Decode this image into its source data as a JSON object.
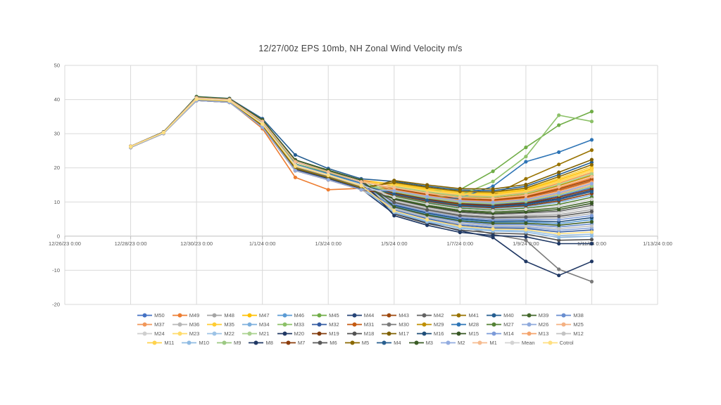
{
  "chart_data": {
    "type": "line",
    "title": "12/27/00z EPS 10mb, NH Zonal Wind Velocity m/s",
    "xlabel": "",
    "ylabel": "",
    "ylim": [
      -20,
      50
    ],
    "y_ticks": [
      -20,
      -10,
      0,
      10,
      20,
      30,
      40,
      50
    ],
    "grid": true,
    "legend_position": "bottom",
    "legend_columns": 13,
    "x_axis": {
      "span_days": 18,
      "tick_days": [
        0,
        2,
        4,
        6,
        8,
        10,
        12,
        14,
        16,
        18
      ],
      "tick_labels": [
        "12/26/23 0:00",
        "12/28/23 0:00",
        "12/30/23 0:00",
        "1/1/24 0:00",
        "1/3/24 0:00",
        "1/5/24 0:00",
        "1/7/24 0:00",
        "1/9/24 0:00",
        "1/11/24 0:00",
        "1/13/24 0:00"
      ]
    },
    "x_dates": [
      "12/28/23 0:00",
      "12/29/23 0:00",
      "12/30/23 0:00",
      "12/31/23 0:00",
      "1/1/24 0:00",
      "1/2/24 0:00",
      "1/3/24 0:00",
      "1/4/24 0:00",
      "1/5/24 0:00",
      "1/6/24 0:00",
      "1/7/24 0:00",
      "1/8/24 0:00",
      "1/9/24 0:00",
      "1/10/24 0:00",
      "1/11/24 0:00"
    ],
    "data_start_day": 2,
    "series": [
      {
        "name": "M50",
        "color": "#4472C4",
        "values": [
          26.3,
          30.4,
          40.5,
          40.0,
          33.6,
          21.8,
          18.8,
          15.9,
          12.8,
          11.0,
          9.7,
          9.3,
          10.0,
          11.7,
          14.2
        ]
      },
      {
        "name": "M49",
        "color": "#ED7D31",
        "values": [
          26.1,
          30.2,
          39.8,
          39.3,
          31.5,
          17.2,
          13.6,
          14.0,
          14.0,
          12.4,
          11.1,
          10.8,
          11.7,
          14.1,
          17.0
        ]
      },
      {
        "name": "M48",
        "color": "#A5A5A5",
        "values": [
          26.2,
          30.3,
          40.2,
          39.7,
          33.0,
          20.8,
          18.0,
          15.0,
          10.2,
          8.0,
          6.3,
          5.7,
          6.0,
          6.3,
          7.8
        ]
      },
      {
        "name": "M47",
        "color": "#FFC000",
        "values": [
          26.3,
          30.5,
          40.7,
          40.2,
          34.0,
          22.3,
          19.3,
          16.4,
          15.2,
          13.7,
          12.6,
          12.3,
          13.5,
          16.5,
          19.8
        ]
      },
      {
        "name": "M46",
        "color": "#5B9BD5",
        "values": [
          26.0,
          30.1,
          39.7,
          39.2,
          31.9,
          19.2,
          16.5,
          13.6,
          8.9,
          6.5,
          4.8,
          4.1,
          4.2,
          3.7,
          4.8
        ]
      },
      {
        "name": "M45",
        "color": "#70AD47",
        "values": [
          26.3,
          30.4,
          40.9,
          40.3,
          33.8,
          21.8,
          19.0,
          16.5,
          13.3,
          13.2,
          13.6,
          19.0,
          26.0,
          32.5,
          36.5
        ]
      },
      {
        "name": "M44",
        "color": "#264478",
        "values": [
          26.3,
          30.4,
          40.5,
          40.0,
          33.6,
          21.8,
          18.8,
          15.9,
          12.5,
          10.7,
          9.2,
          8.8,
          9.5,
          11.0,
          13.4
        ]
      },
      {
        "name": "M43",
        "color": "#9E480E",
        "values": [
          26.1,
          30.2,
          39.9,
          39.4,
          32.4,
          19.9,
          17.2,
          14.2,
          13.9,
          12.2,
          10.9,
          10.6,
          11.5,
          13.8,
          16.6
        ]
      },
      {
        "name": "M42",
        "color": "#636363",
        "values": [
          26.2,
          30.3,
          40.2,
          39.7,
          33.0,
          20.8,
          18.0,
          15.0,
          10.7,
          8.5,
          7.0,
          6.4,
          6.8,
          7.3,
          9.0
        ]
      },
      {
        "name": "M41",
        "color": "#997300",
        "values": [
          26.2,
          30.3,
          40.3,
          39.8,
          33.1,
          20.9,
          17.8,
          14.8,
          11.6,
          10.2,
          9.4,
          12.0,
          16.8,
          21.0,
          25.2
        ]
      },
      {
        "name": "M40",
        "color": "#255E91",
        "values": [
          26.3,
          30.5,
          40.8,
          40.3,
          34.4,
          23.8,
          19.8,
          16.8,
          16.0,
          14.6,
          13.5,
          13.3,
          14.6,
          18.0,
          21.6
        ]
      },
      {
        "name": "M39",
        "color": "#43682B",
        "values": [
          26.1,
          30.2,
          39.9,
          39.4,
          32.4,
          19.9,
          17.2,
          14.2,
          11.2,
          9.1,
          7.6,
          7.1,
          7.5,
          8.3,
          10.2
        ]
      },
      {
        "name": "M38",
        "color": "#698ED0",
        "values": [
          26.2,
          30.3,
          40.2,
          39.7,
          33.0,
          20.8,
          18.0,
          15.0,
          8.4,
          6.0,
          4.2,
          3.4,
          3.4,
          2.7,
          3.6
        ]
      },
      {
        "name": "M37",
        "color": "#F1975A",
        "values": [
          26.3,
          30.5,
          40.7,
          40.2,
          34.0,
          22.3,
          19.3,
          16.4,
          14.7,
          13.1,
          12.0,
          11.7,
          12.7,
          15.5,
          18.6
        ]
      },
      {
        "name": "M36",
        "color": "#B7B7B7",
        "values": [
          26.0,
          30.1,
          39.7,
          39.2,
          31.9,
          19.2,
          16.5,
          13.6,
          9.7,
          7.4,
          5.7,
          5.1,
          5.3,
          5.3,
          6.6
        ]
      },
      {
        "name": "M35",
        "color": "#FFCD33",
        "values": [
          26.3,
          30.4,
          40.5,
          40.0,
          33.6,
          21.8,
          18.8,
          15.9,
          15.4,
          14.0,
          12.8,
          12.6,
          13.8,
          16.9,
          20.3
        ]
      },
      {
        "name": "M34",
        "color": "#7CAFDD",
        "values": [
          26.1,
          30.2,
          39.9,
          39.4,
          32.4,
          19.9,
          17.2,
          14.2,
          11.9,
          10.0,
          8.5,
          8.1,
          8.6,
          9.9,
          12.0
        ]
      },
      {
        "name": "M33",
        "color": "#8CC168",
        "values": [
          26.2,
          30.3,
          40.6,
          40.1,
          33.4,
          21.2,
          18.6,
          15.9,
          12.8,
          11.5,
          12.0,
          16.0,
          23.3,
          35.4,
          33.6
        ]
      },
      {
        "name": "M32",
        "color": "#335AA1",
        "values": [
          26.2,
          30.3,
          40.2,
          39.7,
          33.0,
          20.8,
          18.0,
          15.0,
          7.6,
          5.1,
          3.2,
          2.4,
          2.3,
          1.2,
          1.8
        ]
      },
      {
        "name": "M31",
        "color": "#C55A11",
        "values": [
          26.3,
          30.5,
          40.7,
          40.2,
          34.0,
          22.3,
          19.3,
          16.4,
          13.7,
          12.0,
          10.7,
          10.4,
          11.2,
          13.4,
          16.2
        ]
      },
      {
        "name": "M30",
        "color": "#7B7B7B",
        "values": [
          26.2,
          30.2,
          40.0,
          39.6,
          32.6,
          20.2,
          17.4,
          14.4,
          8.0,
          6.0,
          3.0,
          0.5,
          -1.2,
          -9.7,
          -13.3
        ]
      },
      {
        "name": "M29",
        "color": "#BF8F00",
        "values": [
          26.0,
          30.1,
          39.7,
          39.2,
          31.9,
          19.2,
          16.5,
          13.6,
          14.4,
          12.8,
          11.5,
          11.2,
          12.2,
          14.8,
          17.8
        ]
      },
      {
        "name": "M28",
        "color": "#2E75B6",
        "values": [
          26.2,
          30.3,
          40.1,
          39.6,
          32.8,
          21.0,
          18.3,
          15.5,
          12.2,
          10.8,
          11.2,
          14.6,
          21.8,
          24.6,
          28.2
        ]
      },
      {
        "name": "M27",
        "color": "#548235",
        "values": [
          26.3,
          30.4,
          40.5,
          40.0,
          33.6,
          21.8,
          18.8,
          15.9,
          11.7,
          9.7,
          8.2,
          7.7,
          8.2,
          9.3,
          11.4
        ]
      },
      {
        "name": "M26",
        "color": "#8FAADC",
        "values": [
          26.1,
          30.2,
          39.9,
          39.4,
          32.4,
          19.9,
          17.2,
          14.2,
          7.9,
          5.4,
          3.5,
          2.8,
          2.7,
          1.7,
          2.4
        ]
      },
      {
        "name": "M25",
        "color": "#F4B183",
        "values": [
          26.2,
          30.3,
          40.2,
          39.7,
          33.0,
          20.8,
          18.0,
          15.0,
          13.2,
          11.4,
          10.1,
          9.7,
          10.5,
          12.4,
          15.0
        ]
      },
      {
        "name": "M24",
        "color": "#CFCFCF",
        "values": [
          26.3,
          30.5,
          40.7,
          40.2,
          34.0,
          22.3,
          19.3,
          16.4,
          10.4,
          8.3,
          6.6,
          6.1,
          6.4,
          6.8,
          8.4
        ]
      },
      {
        "name": "M23",
        "color": "#FFDB69",
        "values": [
          26.0,
          30.1,
          39.7,
          39.2,
          31.9,
          19.2,
          16.5,
          13.6,
          14.9,
          13.3,
          12.2,
          11.9,
          13.0,
          15.8,
          19.0
        ]
      },
      {
        "name": "M22",
        "color": "#9DC3E6",
        "values": [
          26.3,
          30.4,
          40.5,
          40.0,
          33.6,
          21.8,
          18.8,
          15.9,
          7.1,
          4.5,
          2.6,
          1.8,
          1.6,
          0.2,
          0.6
        ]
      },
      {
        "name": "M21",
        "color": "#A9D18E",
        "values": [
          26.1,
          30.2,
          39.9,
          39.4,
          32.4,
          19.9,
          17.2,
          14.2,
          14.5,
          13.0,
          11.7,
          11.5,
          12.5,
          15.1,
          18.2
        ]
      },
      {
        "name": "M20",
        "color": "#203864",
        "values": [
          26.1,
          30.2,
          40.0,
          39.5,
          32.3,
          19.6,
          16.9,
          13.8,
          6.5,
          4.0,
          1.6,
          -0.4,
          -7.4,
          -11.5,
          -7.4
        ]
      },
      {
        "name": "M19",
        "color": "#823B0C",
        "values": [
          26.2,
          30.3,
          40.2,
          39.7,
          33.0,
          20.8,
          18.0,
          15.0,
          12.7,
          10.8,
          9.5,
          9.0,
          9.7,
          11.4,
          13.8
        ]
      },
      {
        "name": "M18",
        "color": "#525252",
        "values": [
          26.3,
          30.5,
          40.7,
          40.2,
          34.0,
          22.3,
          19.3,
          16.4,
          6.5,
          3.7,
          1.8,
          0.9,
          0.6,
          -1.2,
          -1.0
        ]
      },
      {
        "name": "M17",
        "color": "#7F6000",
        "values": [
          26.0,
          30.1,
          39.7,
          39.2,
          31.9,
          19.2,
          16.5,
          13.6,
          16.3,
          15.0,
          13.9,
          13.8,
          15.1,
          18.7,
          22.4
        ]
      },
      {
        "name": "M16",
        "color": "#1F4E79",
        "values": [
          26.3,
          30.4,
          40.5,
          40.0,
          33.6,
          21.8,
          18.8,
          15.9,
          9.1,
          6.8,
          5.1,
          4.4,
          4.5,
          4.2,
          5.4
        ]
      },
      {
        "name": "M15",
        "color": "#375623",
        "values": [
          26.1,
          30.2,
          39.9,
          39.4,
          32.4,
          19.9,
          17.2,
          14.2,
          10.9,
          8.8,
          7.3,
          6.7,
          7.1,
          7.8,
          9.6
        ]
      },
      {
        "name": "M14",
        "color": "#7C9BD9",
        "values": [
          26.2,
          30.3,
          40.2,
          39.7,
          33.0,
          20.8,
          18.0,
          15.0,
          9.4,
          7.1,
          5.4,
          4.8,
          4.9,
          4.8,
          6.0
        ]
      },
      {
        "name": "M13",
        "color": "#F4A46C",
        "values": [
          26.3,
          30.5,
          40.7,
          40.2,
          34.0,
          22.3,
          19.3,
          16.4,
          13.5,
          11.8,
          10.5,
          10.1,
          11.0,
          13.1,
          15.8
        ]
      },
      {
        "name": "M12",
        "color": "#C3C3C3",
        "values": [
          26.0,
          30.1,
          39.7,
          39.2,
          31.9,
          19.2,
          16.5,
          13.6,
          8.1,
          5.7,
          3.8,
          3.1,
          3.0,
          2.2,
          3.0
        ]
      },
      {
        "name": "M11",
        "color": "#FFD34D",
        "values": [
          26.3,
          30.4,
          40.5,
          40.0,
          33.6,
          21.8,
          18.8,
          15.9,
          15.0,
          13.5,
          12.4,
          12.1,
          13.2,
          16.1,
          19.4
        ]
      },
      {
        "name": "M10",
        "color": "#8FBBE3",
        "values": [
          26.1,
          30.2,
          39.9,
          39.4,
          32.4,
          19.9,
          17.2,
          14.2,
          6.9,
          4.2,
          2.3,
          1.5,
          1.2,
          -0.4,
          0.0
        ]
      },
      {
        "name": "M9",
        "color": "#9CC983",
        "values": [
          26.2,
          30.3,
          40.2,
          39.7,
          33.0,
          20.8,
          18.0,
          15.0,
          13.0,
          11.2,
          9.9,
          9.5,
          10.2,
          12.1,
          14.6
        ]
      },
      {
        "name": "M8",
        "color": "#1F3864",
        "values": [
          26.3,
          30.5,
          40.7,
          40.2,
          34.0,
          22.3,
          19.3,
          16.4,
          6.0,
          3.2,
          1.1,
          0.2,
          -0.2,
          -2.2,
          -2.2
        ]
      },
      {
        "name": "M7",
        "color": "#8C3D0C",
        "values": [
          26.0,
          30.1,
          39.7,
          39.2,
          31.9,
          19.2,
          16.5,
          13.6,
          12.1,
          10.2,
          8.8,
          8.3,
          8.9,
          10.3,
          12.5
        ]
      },
      {
        "name": "M6",
        "color": "#595959",
        "values": [
          26.3,
          30.4,
          40.5,
          40.0,
          33.6,
          21.8,
          18.8,
          15.9,
          9.9,
          7.7,
          6.0,
          5.4,
          5.6,
          5.8,
          7.2
        ]
      },
      {
        "name": "M5",
        "color": "#8A6800",
        "values": [
          26.1,
          30.2,
          39.9,
          39.4,
          32.4,
          19.9,
          17.2,
          14.2,
          15.7,
          14.3,
          13.1,
          12.9,
          14.1,
          17.4,
          20.9
        ]
      },
      {
        "name": "M4",
        "color": "#295F8F",
        "values": [
          26.2,
          30.3,
          40.2,
          39.7,
          33.0,
          20.8,
          18.0,
          15.0,
          12.3,
          10.5,
          9.0,
          8.6,
          9.2,
          10.7,
          13.0
        ]
      },
      {
        "name": "M3",
        "color": "#3B5D26",
        "values": [
          26.3,
          30.5,
          40.7,
          40.2,
          34.0,
          22.3,
          19.3,
          16.4,
          8.6,
          6.2,
          4.5,
          3.8,
          3.8,
          3.2,
          4.2
        ]
      },
      {
        "name": "M2",
        "color": "#93ACE0",
        "values": [
          26.0,
          30.1,
          39.7,
          39.2,
          31.9,
          19.2,
          16.5,
          13.6,
          13.3,
          11.6,
          10.3,
          9.9,
          10.7,
          12.7,
          15.4
        ]
      },
      {
        "name": "M1",
        "color": "#F6BB8F",
        "values": [
          26.3,
          30.4,
          40.5,
          40.0,
          33.6,
          21.8,
          18.8,
          15.9,
          14.2,
          12.6,
          11.3,
          11.0,
          12.0,
          14.4,
          17.4
        ]
      },
      {
        "name": "Mean",
        "color": "#D3D3D3",
        "values": [
          26.2,
          30.3,
          40.2,
          39.7,
          33.0,
          20.8,
          18.0,
          15.0,
          11.4,
          9.4,
          7.9,
          7.4,
          7.9,
          8.8,
          10.8
        ]
      },
      {
        "name": "Cotrol",
        "color": "#FFDF80",
        "values": [
          26.2,
          30.3,
          40.1,
          39.6,
          32.8,
          20.5,
          17.8,
          14.8,
          7.4,
          4.8,
          2.9,
          2.1,
          1.9,
          0.7,
          1.2
        ]
      }
    ]
  },
  "colors": {
    "background": "#FFFFFF",
    "gridline": "#D9D9D9",
    "axis_line": "#BFBFBF",
    "tick_text": "#595959",
    "title_text": "#3F3F3F",
    "legend_text": "#595959"
  }
}
